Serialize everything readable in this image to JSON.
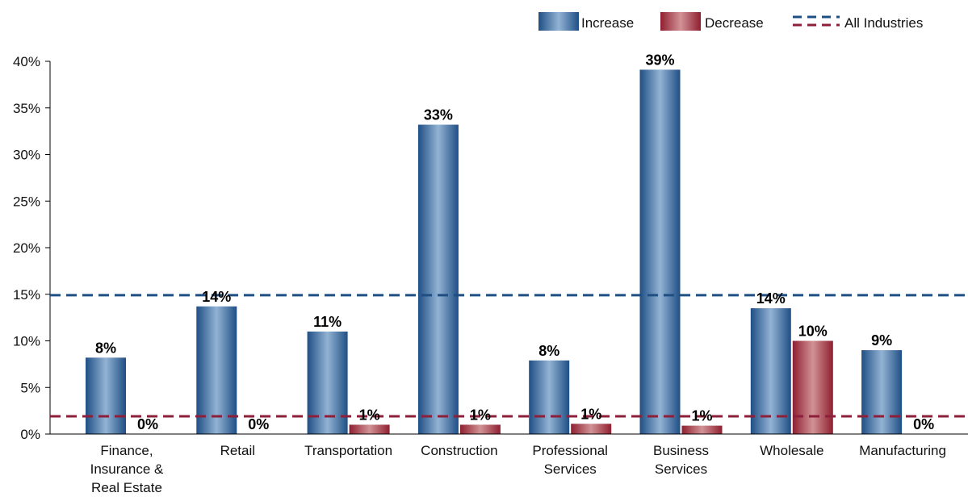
{
  "chart_data": {
    "type": "bar",
    "categories": [
      "Finance,\nInsurance &\nReal Estate",
      "Retail",
      "Transportation",
      "Construction",
      "Professional\nServices",
      "Business\nServices",
      "Wholesale",
      "Manufacturing"
    ],
    "series": [
      {
        "name": "Increase",
        "color": "#2a5c91",
        "values": [
          8.2,
          13.7,
          11.0,
          33.2,
          7.9,
          39.1,
          13.5,
          9.0
        ],
        "labels": [
          "8%",
          "14%",
          "11%",
          "33%",
          "8%",
          "39%",
          "14%",
          "9%"
        ]
      },
      {
        "name": "Decrease",
        "color": "#a52a3c",
        "values": [
          0,
          0,
          1.0,
          1.0,
          1.1,
          0.9,
          10.0,
          0
        ],
        "labels": [
          "0%",
          "0%",
          "1%",
          "1%",
          "1%",
          "1%",
          "10%",
          "0%"
        ]
      }
    ],
    "reference_lines": [
      {
        "series": "Increase",
        "value": 14.9,
        "color": "#1f4f82"
      },
      {
        "series": "Decrease",
        "value": 1.9,
        "color": "#8c1f3a"
      }
    ],
    "legend": {
      "increase": "Increase",
      "decrease": "Decrease",
      "all_industries": "All Industries",
      "placement": "top-right"
    },
    "yticks": [
      "0%",
      "5%",
      "10%",
      "15%",
      "20%",
      "25%",
      "30%",
      "35%",
      "40%"
    ],
    "ylim": [
      0,
      40
    ],
    "title": "",
    "xlabel": "",
    "ylabel": "",
    "grid": false
  }
}
